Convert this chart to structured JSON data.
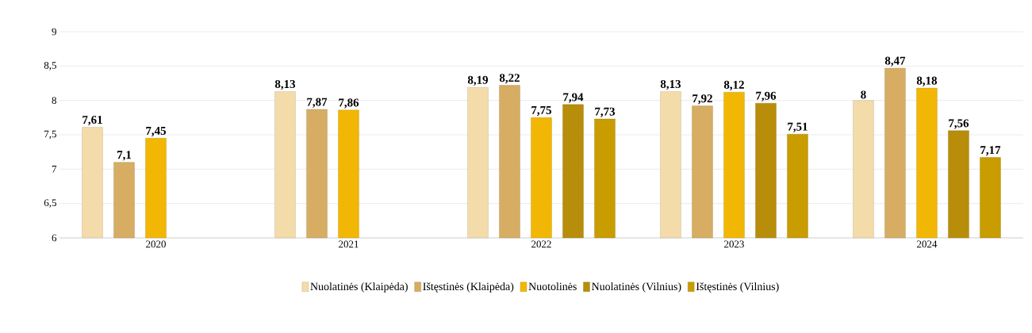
{
  "chart_data": {
    "type": "bar",
    "categories": [
      "2020",
      "2021",
      "2022",
      "2023",
      "2024"
    ],
    "series": [
      {
        "name": "Nuolatinės (Klaipėda)",
        "color": "#f3dcaa",
        "values": [
          7.61,
          8.13,
          8.19,
          8.13,
          8
        ],
        "value_labels": [
          "7,61",
          "8,13",
          "8,19",
          "8,13",
          "8"
        ]
      },
      {
        "name": "Ištęstinės (Klaipėda)",
        "color": "#d6ad62",
        "values": [
          7.1,
          7.87,
          8.22,
          7.92,
          8.47
        ],
        "value_labels": [
          "7,1",
          "7,87",
          "8,22",
          "7,92",
          "8,47"
        ]
      },
      {
        "name": "Nuotolinės",
        "color": "#f2b705",
        "values": [
          7.45,
          7.86,
          7.75,
          8.12,
          8.18
        ],
        "value_labels": [
          "7,45",
          "7,86",
          "7,75",
          "8,12",
          "8,18"
        ]
      },
      {
        "name": "Nuolatinės (Vilnius)",
        "color": "#b88d0a",
        "values": [
          null,
          null,
          7.94,
          7.96,
          7.56
        ],
        "value_labels": [
          null,
          null,
          "7,94",
          "7,96",
          "7,56"
        ]
      },
      {
        "name": "Ištęstinės (Vilnius)",
        "color": "#c99c00",
        "values": [
          null,
          null,
          7.73,
          7.51,
          7.17
        ],
        "value_labels": [
          null,
          null,
          "7,73",
          "7,51",
          "7,17"
        ]
      }
    ],
    "ylim": [
      6,
      9
    ],
    "yticks": [
      6,
      {
        "value": 6.5,
        "label": "6,5"
      },
      7,
      {
        "value": 7.5,
        "label": "7,5"
      },
      8,
      {
        "value": 8.5,
        "label": "8,5"
      },
      9
    ],
    "grid": "y",
    "legend": "bottom"
  }
}
